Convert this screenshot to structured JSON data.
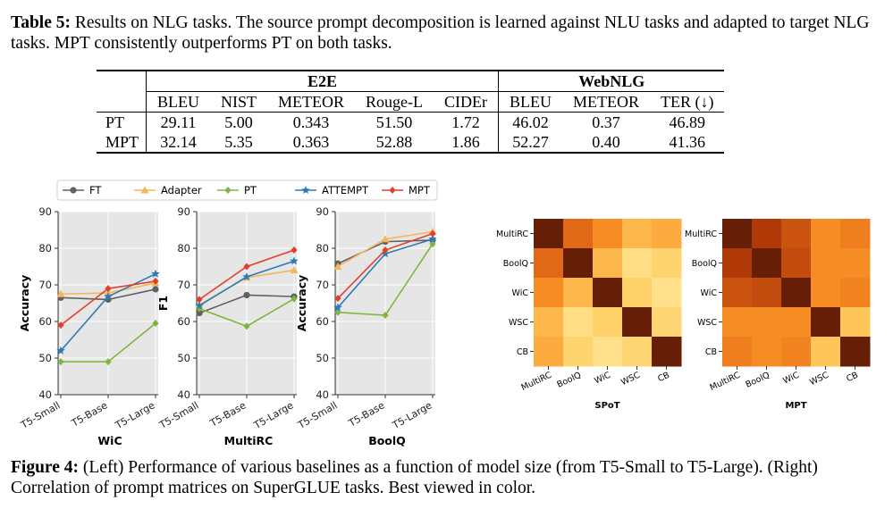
{
  "table": {
    "caption_label": "Table 5:",
    "caption_text": " Results on NLG tasks. The source prompt decomposition is learned against NLU tasks and adapted to target NLG tasks. MPT consistently outperforms PT on both tasks.",
    "groups": [
      "E2E",
      "WebNLG"
    ],
    "headers": [
      "BLEU",
      "NIST",
      "METEOR",
      "Rouge-L",
      "CIDEr",
      "BLEU",
      "METEOR",
      "TER (↓)"
    ],
    "rows": [
      {
        "label": "PT",
        "values": [
          "29.11",
          "5.00",
          "0.343",
          "51.50",
          "1.72",
          "46.02",
          "0.37",
          "46.89"
        ]
      },
      {
        "label": "MPT",
        "values": [
          "32.14",
          "5.35",
          "0.363",
          "52.88",
          "1.86",
          "52.27",
          "0.40",
          "41.36"
        ]
      }
    ]
  },
  "legend": [
    {
      "name": "FT",
      "color": "#606060",
      "marker": "circle"
    },
    {
      "name": "Adapter",
      "color": "#f5b55a",
      "marker": "triangle"
    },
    {
      "name": "PT",
      "color": "#80b541",
      "marker": "diamond"
    },
    {
      "name": "ATTEMPT",
      "color": "#2c7bb6",
      "marker": "star"
    },
    {
      "name": "MPT",
      "color": "#e0402c",
      "marker": "diamond"
    }
  ],
  "chart_data": [
    {
      "type": "line",
      "title": "WiC",
      "ylabel": "Accuracy",
      "categories": [
        "T5-Small",
        "T5-Base",
        "T5-Large"
      ],
      "ylim": [
        40,
        90
      ],
      "yticks": [
        "40",
        "50",
        "60",
        "70",
        "80",
        "90"
      ],
      "grid": true,
      "series": [
        {
          "name": "FT",
          "values": [
            66.5,
            66.0,
            68.8
          ]
        },
        {
          "name": "Adapter",
          "values": [
            67.5,
            67.8,
            70.5
          ]
        },
        {
          "name": "PT",
          "values": [
            49.0,
            49.0,
            59.5
          ]
        },
        {
          "name": "ATTEMPT",
          "values": [
            52.0,
            66.8,
            73.0
          ]
        },
        {
          "name": "MPT",
          "values": [
            59.0,
            69.0,
            71.0
          ]
        }
      ]
    },
    {
      "type": "line",
      "title": "MultiRC",
      "ylabel": "F1",
      "categories": [
        "T5-Small",
        "T5-Base",
        "T5-Large"
      ],
      "ylim": [
        40,
        90
      ],
      "yticks": [
        "40",
        "50",
        "60",
        "70",
        "80",
        "90"
      ],
      "grid": true,
      "series": [
        {
          "name": "FT",
          "values": [
            62.3,
            67.2,
            66.8
          ]
        },
        {
          "name": "Adapter",
          "values": [
            64.5,
            72.0,
            74.0
          ]
        },
        {
          "name": "PT",
          "values": [
            63.5,
            58.7,
            66.2
          ]
        },
        {
          "name": "ATTEMPT",
          "values": [
            64.3,
            72.2,
            76.5
          ]
        },
        {
          "name": "MPT",
          "values": [
            66.0,
            75.0,
            79.5
          ]
        }
      ]
    },
    {
      "type": "line",
      "title": "BoolQ",
      "ylabel": "Accuracy",
      "categories": [
        "T5-Small",
        "T5-Base",
        "T5-Large"
      ],
      "ylim": [
        40,
        90
      ],
      "yticks": [
        "40",
        "50",
        "60",
        "70",
        "80",
        "90"
      ],
      "grid": true,
      "series": [
        {
          "name": "FT",
          "values": [
            75.8,
            81.8,
            82.2
          ]
        },
        {
          "name": "Adapter",
          "values": [
            75.0,
            82.5,
            84.5
          ]
        },
        {
          "name": "PT",
          "values": [
            62.5,
            61.7,
            81.2
          ]
        },
        {
          "name": "ATTEMPT",
          "values": [
            63.8,
            78.5,
            82.5
          ]
        },
        {
          "name": "MPT",
          "values": [
            66.3,
            79.5,
            84.0
          ]
        }
      ]
    },
    {
      "type": "heatmap",
      "title": "SPoT",
      "labels": [
        "MultiRC",
        "BoolQ",
        "WiC",
        "WSC",
        "CB"
      ],
      "values": [
        [
          1.0,
          0.72,
          0.55,
          0.35,
          0.4
        ],
        [
          0.72,
          1.0,
          0.35,
          0.12,
          0.2
        ],
        [
          0.55,
          0.35,
          1.0,
          0.22,
          0.1
        ],
        [
          0.35,
          0.12,
          0.22,
          1.0,
          0.18
        ],
        [
          0.4,
          0.2,
          0.1,
          0.18,
          1.0
        ]
      ]
    },
    {
      "type": "heatmap",
      "title": "MPT",
      "labels": [
        "MultiRC",
        "BoolQ",
        "WiC",
        "WSC",
        "CB"
      ],
      "values": [
        [
          1.0,
          0.85,
          0.78,
          0.55,
          0.62
        ],
        [
          0.85,
          1.0,
          0.8,
          0.55,
          0.55
        ],
        [
          0.78,
          0.8,
          1.0,
          0.55,
          0.6
        ],
        [
          0.55,
          0.55,
          0.55,
          1.0,
          0.28
        ],
        [
          0.62,
          0.55,
          0.6,
          0.28,
          1.0
        ]
      ]
    }
  ],
  "figure": {
    "caption_label": "Figure 4:",
    "caption_text": " (Left) Performance of various baselines as a function of model size (from T5-Small to T5-Large). (Right) Correlation of prompt matrices on SuperGLUE tasks. Best viewed in color."
  }
}
